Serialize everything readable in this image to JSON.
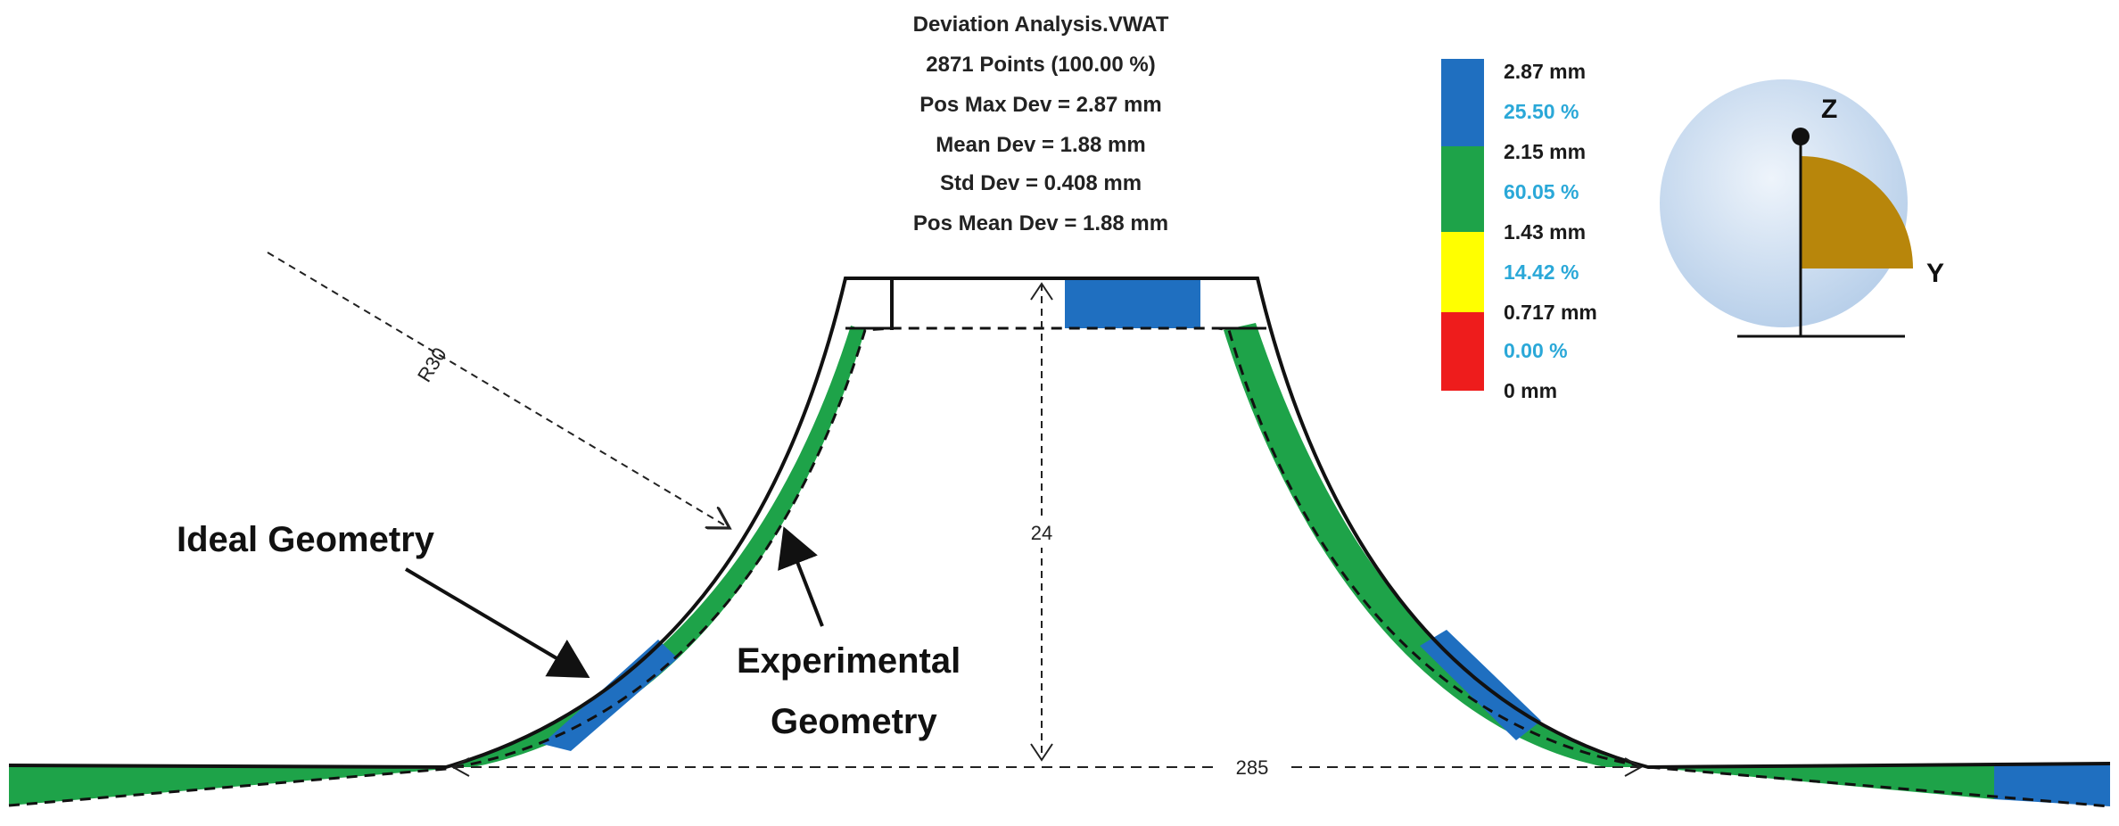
{
  "header": {
    "title": "Deviation Analysis.VWAT",
    "lines": [
      "2871 Points (100.00 %)",
      "Pos Max Dev = 2.87 mm",
      "Mean Dev = 1.88 mm",
      "Std Dev = 0.408 mm",
      "Pos Mean Dev = 1.88 mm"
    ]
  },
  "legend": {
    "bands": [
      {
        "color": "#1f6fc0",
        "percent": "25.50 %"
      },
      {
        "color": "#1ea349",
        "percent": "60.05 %"
      },
      {
        "color": "#ffff00",
        "percent": "14.42 %"
      },
      {
        "color": "#ee1c1c",
        "percent": "0.00 %"
      }
    ],
    "values": [
      "2.87 mm",
      "2.15 mm",
      "1.43 mm",
      "0.717 mm",
      "0 mm"
    ],
    "percent_color": "#2aa8d8"
  },
  "orientation": {
    "z_label": "Z",
    "y_label": "Y",
    "fan_color": "#b8860b",
    "sphere_color": "#c9dcf0"
  },
  "callouts": {
    "ideal": "Ideal Geometry",
    "experimental_1": "Experimental",
    "experimental_2": "Geometry"
  },
  "dimensions": {
    "radius": "R30",
    "height": "24",
    "width": "285"
  },
  "colors": {
    "blue": "#1f6fc0",
    "green": "#1ea349"
  }
}
